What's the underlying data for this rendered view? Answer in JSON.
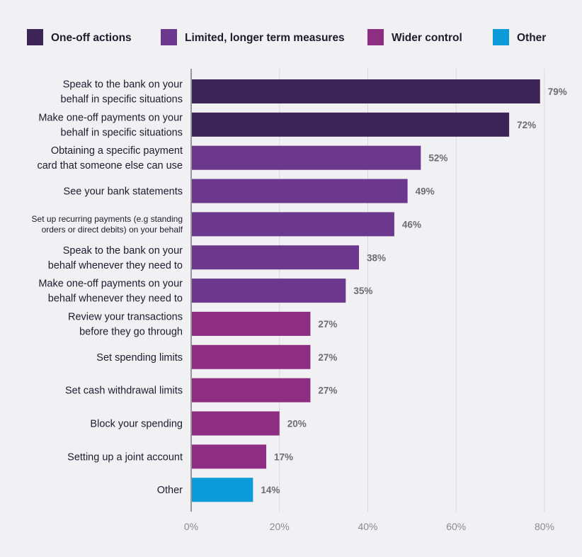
{
  "chart_data": {
    "type": "bar",
    "orientation": "horizontal",
    "categories": [
      [
        "Speak to the bank on your",
        "behalf in specific situations"
      ],
      [
        "Make one-off payments on your",
        "behalf in specific situations"
      ],
      [
        "Obtaining a specific payment",
        "card that someone else can use"
      ],
      [
        "See your bank statements"
      ],
      [
        "Set up recurring payments (e.g standing",
        "orders or direct debits) on your behalf"
      ],
      [
        "Speak to the bank on your",
        "behalf whenever they need to"
      ],
      [
        "Make one-off payments on your",
        "behalf whenever they need to"
      ],
      [
        "Review your transactions",
        "before they go through"
      ],
      [
        "Set spending limits"
      ],
      [
        "Set cash withdrawal limits"
      ],
      [
        "Block your spending"
      ],
      [
        "Setting up a joint account"
      ],
      [
        "Other"
      ]
    ],
    "values": [
      79,
      72,
      52,
      49,
      46,
      38,
      35,
      27,
      27,
      27,
      20,
      17,
      14
    ],
    "value_labels": [
      "79%",
      "72%",
      "52%",
      "49%",
      "46%",
      "38%",
      "35%",
      "27%",
      "27%",
      "27%",
      "20%",
      "17%",
      "14%"
    ],
    "groups": [
      "One-off actions",
      "One-off actions",
      "Limited, longer term measures",
      "Limited, longer term measures",
      "Limited, longer term measures",
      "Limited, longer term measures",
      "Limited, longer term measures",
      "Wider control",
      "Wider control",
      "Wider control",
      "Wider control",
      "Wider control",
      "Other"
    ],
    "legend": [
      {
        "name": "One-off actions",
        "color": "#3d2456"
      },
      {
        "name": "Limited, longer term measures",
        "color": "#6b388d"
      },
      {
        "name": "Wider control",
        "color": "#8e2e82"
      },
      {
        "name": "Other",
        "color": "#0a9bd8"
      }
    ],
    "legend_position": "top",
    "xlim": [
      0,
      80
    ],
    "xticks": [
      0,
      20,
      40,
      60,
      80
    ],
    "xtick_labels": [
      "0%",
      "20%",
      "40%",
      "60%",
      "80%"
    ],
    "grid": "vertical",
    "title": "",
    "xlabel": "",
    "ylabel": ""
  }
}
